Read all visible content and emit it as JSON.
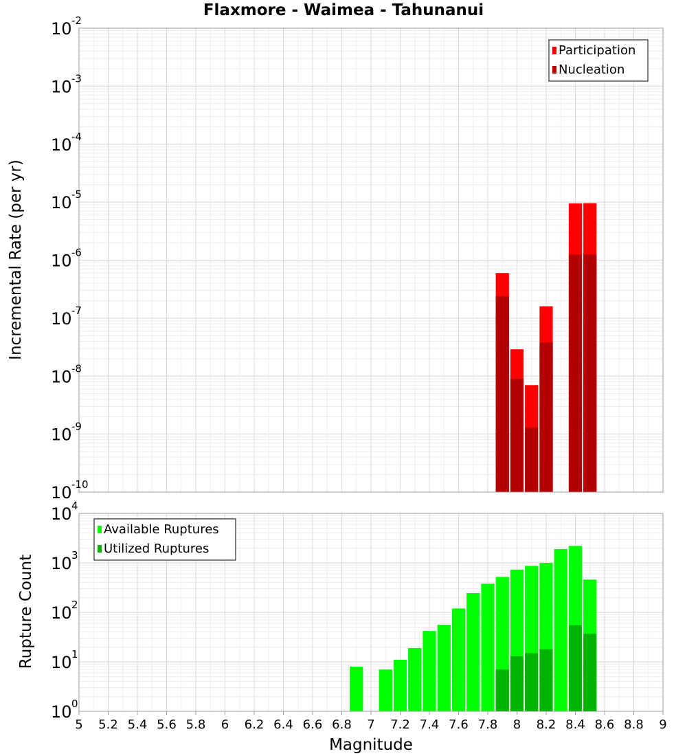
{
  "chart_data": [
    {
      "type": "bar",
      "title": "Flaxmore - Waimea - Tahunanui",
      "xlabel": "Magnitude",
      "ylabel": "Incremental Rate (per yr)",
      "yscale": "log",
      "ylim_exponents": [
        -10,
        -2
      ],
      "legend_position": "top-right",
      "grid": true,
      "bin_width": 0.1,
      "x": [
        7.9,
        8.0,
        8.1,
        8.2,
        8.4,
        8.5
      ],
      "series": [
        {
          "name": "Participation",
          "color": "#ff0000",
          "values": [
            6e-07,
            2.9e-08,
            7e-09,
            1.6e-07,
            9.5e-06,
            9.6e-06
          ]
        },
        {
          "name": "Nucleation",
          "color": "#b30000",
          "values": [
            2.4e-07,
            9e-09,
            1.3e-09,
            3.8e-08,
            1.25e-06,
            1.25e-06
          ]
        }
      ]
    },
    {
      "type": "bar",
      "xlabel": "Magnitude",
      "ylabel": "Rupture Count",
      "yscale": "log",
      "ylim_exponents": [
        0,
        4
      ],
      "legend_position": "top-left",
      "grid": true,
      "bin_width": 0.1,
      "x": [
        6.9,
        7.1,
        7.2,
        7.3,
        7.4,
        7.5,
        7.6,
        7.7,
        7.8,
        7.9,
        8.0,
        8.1,
        8.2,
        8.3,
        8.4,
        8.5
      ],
      "series": [
        {
          "name": "Available Ruptures",
          "color": "#00ff00",
          "values": [
            8,
            7,
            11,
            19,
            42,
            56,
            120,
            245,
            380,
            520,
            730,
            870,
            1000,
            1900,
            2200,
            460
          ]
        },
        {
          "name": "Utilized Ruptures",
          "color": "#00b300",
          "values": [
            0,
            0,
            0,
            0,
            0,
            0,
            0,
            0,
            1,
            7,
            13,
            15,
            18,
            1,
            55,
            37
          ]
        }
      ]
    }
  ],
  "x_ticks": [
    "5",
    "5.2",
    "5.4",
    "5.6",
    "5.8",
    "6",
    "6.2",
    "6.4",
    "6.6",
    "6.8",
    "7",
    "7.2",
    "7.4",
    "7.6",
    "7.8",
    "8",
    "8.2",
    "8.4",
    "8.6",
    "8.8",
    "9"
  ],
  "top_y_ticks": [
    {
      "base": "10",
      "exp": "-2"
    },
    {
      "base": "10",
      "exp": "-3"
    },
    {
      "base": "10",
      "exp": "-4"
    },
    {
      "base": "10",
      "exp": "-5"
    },
    {
      "base": "10",
      "exp": "-6"
    },
    {
      "base": "10",
      "exp": "-7"
    },
    {
      "base": "10",
      "exp": "-8"
    },
    {
      "base": "10",
      "exp": "-9"
    },
    {
      "base": "10",
      "exp": "-10"
    }
  ],
  "bottom_y_ticks": [
    {
      "base": "10",
      "exp": "4"
    },
    {
      "base": "10",
      "exp": "3"
    },
    {
      "base": "10",
      "exp": "2"
    },
    {
      "base": "10",
      "exp": "1"
    },
    {
      "base": "10",
      "exp": "0"
    }
  ]
}
